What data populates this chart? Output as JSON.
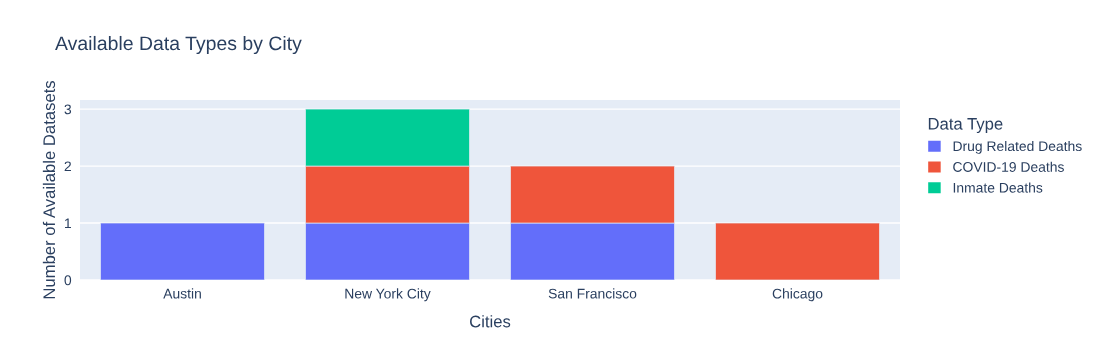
{
  "chart_data": {
    "type": "bar",
    "title": "Available Data Types by City",
    "xlabel": "Cities",
    "ylabel": "Number of Available Datasets",
    "legend_title": "Data Type",
    "categories": [
      "Austin",
      "New York City",
      "San Francisco",
      "Chicago"
    ],
    "series": [
      {
        "name": "Drug Related Deaths",
        "color": "#636efa",
        "values": [
          1,
          1,
          1,
          null
        ]
      },
      {
        "name": "COVID-19 Deaths",
        "color": "#ef553b",
        "values": [
          null,
          1,
          1,
          1
        ]
      },
      {
        "name": "Inmate Deaths",
        "color": "#00cc96",
        "values": [
          null,
          1,
          null,
          null
        ]
      }
    ],
    "stacked": true,
    "ylim": [
      0,
      3.16
    ],
    "yticks": [
      0,
      1,
      2,
      3
    ],
    "grid": "y",
    "legend": "top right"
  }
}
